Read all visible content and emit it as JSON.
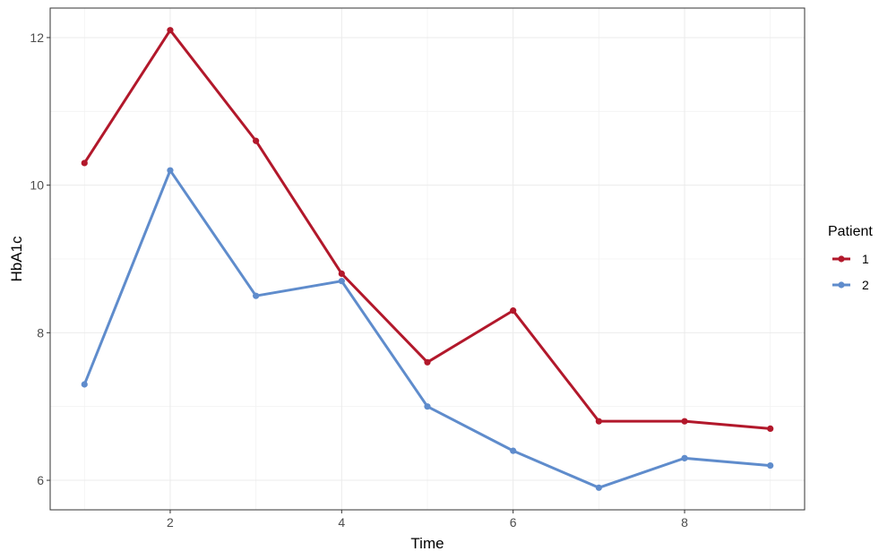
{
  "chart_data": {
    "type": "line",
    "xlabel": "Time",
    "ylabel": "HbA1c",
    "x": [
      1,
      2,
      3,
      4,
      5,
      6,
      7,
      8,
      9
    ],
    "xlim": [
      0.6,
      9.4
    ],
    "ylim": [
      5.6,
      12.4
    ],
    "x_ticks": [
      2,
      4,
      6,
      8
    ],
    "y_ticks": [
      6,
      8,
      10,
      12
    ],
    "x_tick_labels": [
      "2",
      "4",
      "6",
      "8"
    ],
    "y_tick_labels": [
      "6",
      "8",
      "10",
      "12"
    ],
    "grid": true,
    "legend": {
      "title": "Patient",
      "position": "right"
    },
    "series": [
      {
        "name": "1",
        "color": "#b2182b",
        "values": [
          10.3,
          12.1,
          10.6,
          8.8,
          7.6,
          8.3,
          6.8,
          6.8,
          6.7
        ]
      },
      {
        "name": "2",
        "color": "#5f8ccc",
        "values": [
          7.3,
          10.2,
          8.5,
          8.7,
          7.0,
          6.4,
          5.9,
          6.3,
          6.2
        ]
      }
    ]
  }
}
